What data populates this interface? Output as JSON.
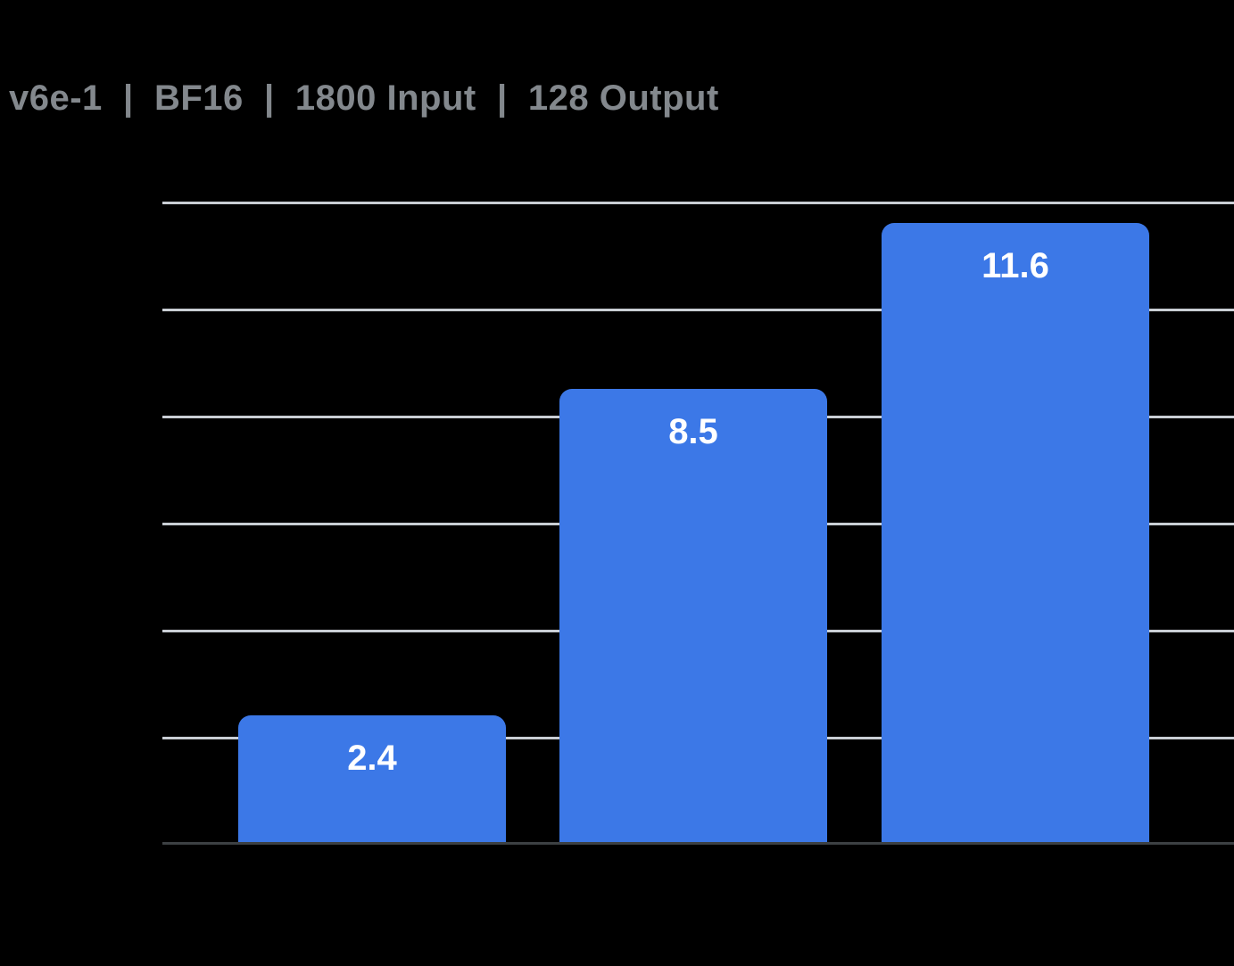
{
  "chart_data": {
    "type": "bar",
    "title": "v6e-1  |  BF16  |  1800 Input  |  128 Output",
    "values": [
      2.4,
      8.5,
      11.6
    ],
    "data_labels": [
      "2.4",
      "8.5",
      "11.6"
    ],
    "categories": [
      "",
      "",
      ""
    ],
    "ylim": [
      0,
      12
    ],
    "y_gridline_interval": 2,
    "grid": "horizontal",
    "x_tick_labels_visible": false,
    "y_tick_labels_visible": false,
    "legend_position": "none"
  },
  "colors": {
    "background": "#000000",
    "title_text": "#83888D",
    "gridline": "#C9CED4",
    "axis_line": "#3C4043",
    "bar": "#3C78E7",
    "bar_label_text": "#FFFFFF"
  }
}
